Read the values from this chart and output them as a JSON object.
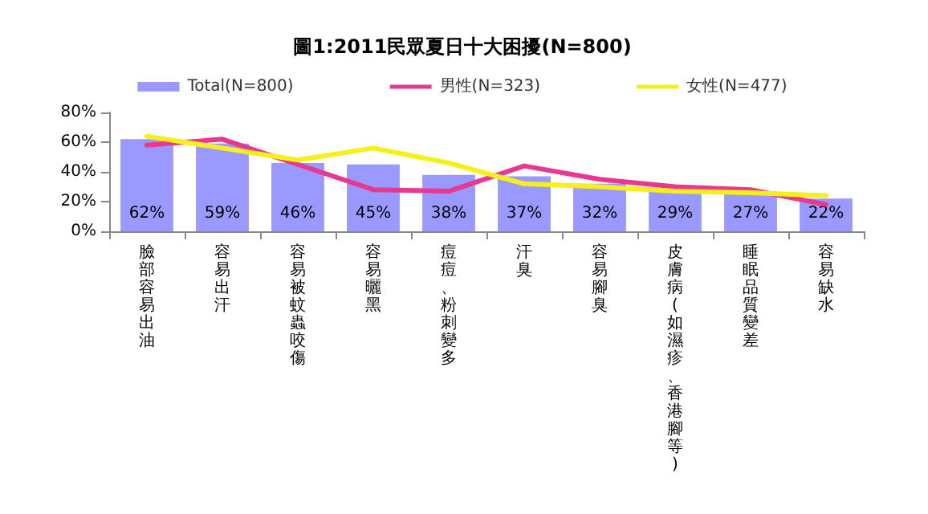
{
  "chart_data": {
    "type": "bar",
    "title": "圖1:2011民眾夏日十大困擾(N=800)",
    "categories": [
      "臉部容易出油",
      "容易出汗",
      "容易被蚊蟲咬傷",
      "容易曬黑",
      "痘痘、粉刺變多",
      "汗臭",
      "容易腳臭",
      "皮膚病(如濕疹、香港腳等)",
      "睡眠品質變差",
      "容易缺水"
    ],
    "series": [
      {
        "name": "Total(N=800)",
        "color": "#9999ff",
        "values": [
          62,
          59,
          46,
          45,
          38,
          37,
          32,
          29,
          27,
          22
        ],
        "value_labels": [
          "62%",
          "59%",
          "46%",
          "45%",
          "38%",
          "37%",
          "32%",
          "29%",
          "27%",
          "22%"
        ]
      },
      {
        "name": "男性(N=323)",
        "type": "line",
        "color": "#e8388f",
        "values": [
          58,
          62,
          45,
          28,
          27,
          44,
          35,
          30,
          28,
          18
        ]
      },
      {
        "name": "女性(N=477)",
        "type": "line",
        "color": "#f5ef1a",
        "values": [
          64,
          56,
          48,
          56,
          46,
          32,
          30,
          27,
          26,
          24
        ]
      }
    ],
    "ylim": [
      0,
      80
    ],
    "yticks": [
      {
        "value": 0,
        "label": "0%"
      },
      {
        "value": 20,
        "label": "20%"
      },
      {
        "value": 40,
        "label": "40%"
      },
      {
        "value": 60,
        "label": "60%"
      },
      {
        "value": 80,
        "label": "80%"
      }
    ],
    "grid": false,
    "legend": "top",
    "marker": "none",
    "line_style": "solid"
  }
}
